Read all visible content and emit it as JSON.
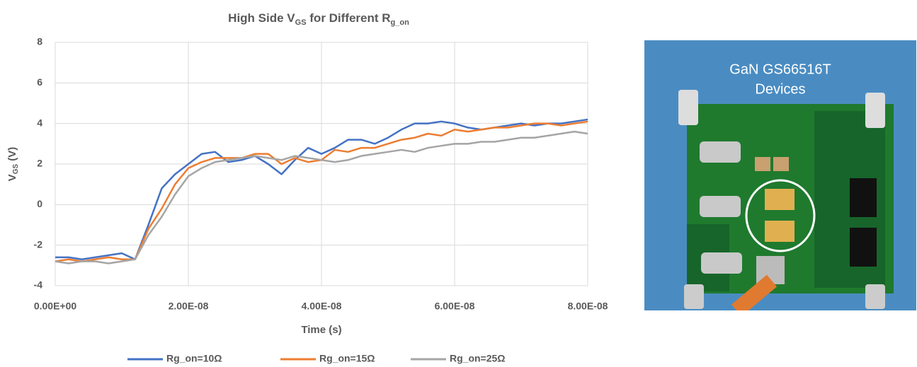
{
  "chart_data": {
    "type": "line",
    "title": [
      "High Side V",
      "GS",
      " for Different R",
      "g_on"
    ],
    "y_label": [
      "V",
      "GS",
      " (V)"
    ],
    "x_label": "Time (s)",
    "x": [
      0,
      2e-09,
      4e-09,
      6e-09,
      8e-09,
      1e-08,
      1.2e-08,
      1.4e-08,
      1.6e-08,
      1.8e-08,
      2e-08,
      2.2e-08,
      2.4e-08,
      2.6e-08,
      2.8e-08,
      3e-08,
      3.2e-08,
      3.4e-08,
      3.6e-08,
      3.8e-08,
      4e-08,
      4.2e-08,
      4.4e-08,
      4.6e-08,
      4.8e-08,
      5e-08,
      5.2e-08,
      5.4e-08,
      5.6e-08,
      5.8e-08,
      6e-08,
      6.2e-08,
      6.4e-08,
      6.6e-08,
      6.8e-08,
      7e-08,
      7.2e-08,
      7.4e-08,
      7.6e-08,
      7.8e-08,
      8e-08
    ],
    "series": [
      {
        "name": "Rg_on=10Ω",
        "color": "#4472c4",
        "values": [
          -2.6,
          -2.6,
          -2.7,
          -2.6,
          -2.5,
          -2.4,
          -2.7,
          -1.0,
          0.8,
          1.5,
          2.0,
          2.5,
          2.6,
          2.1,
          2.2,
          2.4,
          2.0,
          1.5,
          2.2,
          2.8,
          2.5,
          2.8,
          3.2,
          3.2,
          3.0,
          3.3,
          3.7,
          4.0,
          4.0,
          4.1,
          4.0,
          3.8,
          3.7,
          3.8,
          3.9,
          4.0,
          3.9,
          4.0,
          4.0,
          4.1,
          4.2
        ]
      },
      {
        "name": "Rg_on=15Ω",
        "color": "#ed7d31",
        "values": [
          -2.8,
          -2.7,
          -2.8,
          -2.7,
          -2.6,
          -2.7,
          -2.7,
          -1.2,
          -0.2,
          1.0,
          1.8,
          2.1,
          2.3,
          2.3,
          2.3,
          2.5,
          2.5,
          2.0,
          2.3,
          2.1,
          2.2,
          2.7,
          2.6,
          2.8,
          2.8,
          3.0,
          3.2,
          3.3,
          3.5,
          3.4,
          3.7,
          3.6,
          3.7,
          3.8,
          3.8,
          3.9,
          4.0,
          4.0,
          3.9,
          4.0,
          4.1
        ]
      },
      {
        "name": "Rg_on=25Ω",
        "color": "#a5a5a5",
        "values": [
          -2.8,
          -2.9,
          -2.8,
          -2.8,
          -2.9,
          -2.8,
          -2.7,
          -1.5,
          -0.6,
          0.5,
          1.4,
          1.8,
          2.1,
          2.2,
          2.3,
          2.4,
          2.3,
          2.2,
          2.4,
          2.3,
          2.2,
          2.1,
          2.2,
          2.4,
          2.5,
          2.6,
          2.7,
          2.6,
          2.8,
          2.9,
          3.0,
          3.0,
          3.1,
          3.1,
          3.2,
          3.3,
          3.3,
          3.4,
          3.5,
          3.6,
          3.5
        ]
      }
    ],
    "xlim": [
      0,
      8e-08
    ],
    "xticks": [
      {
        "value": 0,
        "label": "0.00E+00"
      },
      {
        "value": 2e-08,
        "label": "2.00E-08"
      },
      {
        "value": 4e-08,
        "label": "4.00E-08"
      },
      {
        "value": 6e-08,
        "label": "6.00E-08"
      },
      {
        "value": 8e-08,
        "label": "8.00E-08"
      }
    ],
    "ylim": [
      -4,
      8
    ],
    "yticks": [
      -4,
      -2,
      0,
      2,
      4,
      6,
      8
    ],
    "grid": true,
    "legend": "bottom"
  },
  "photo": {
    "caption": [
      "GaN GS66516T",
      "Devices"
    ]
  }
}
